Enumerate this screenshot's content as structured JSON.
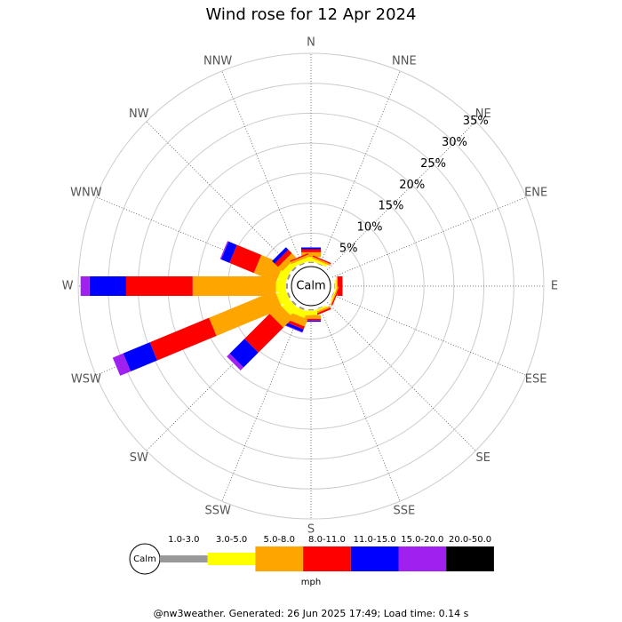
{
  "chart_data": {
    "type": "windrose",
    "title": "Wind rose for 12 Apr 2024",
    "categories": [
      "N",
      "NNE",
      "NE",
      "ENE",
      "E",
      "ESE",
      "SE",
      "SSE",
      "S",
      "SSW",
      "SW",
      "WSW",
      "W",
      "WNW",
      "NW",
      "NNW"
    ],
    "series": [
      {
        "name": "1.0-3.0",
        "color": "#999999",
        "values": [
          0.2,
          0.1,
          0,
          0,
          0.1,
          0.1,
          0,
          0.1,
          0.2,
          0.3,
          0.3,
          0.3,
          0.3,
          0.3,
          0.3,
          0.2
        ]
      },
      {
        "name": "3.0-5.0",
        "color": "#ffff00",
        "values": [
          0.8,
          0.4,
          0,
          0,
          0.3,
          0.2,
          0,
          0.3,
          0.8,
          1.2,
          1.7,
          1.7,
          1.7,
          1.5,
          1.0,
          0.6
        ]
      },
      {
        "name": "5.0-8.0",
        "color": "#ffa500",
        "values": [
          0.8,
          0.3,
          0,
          0,
          0.2,
          0.2,
          0,
          0.3,
          0.6,
          1.3,
          2.3,
          11.9,
          13.9,
          4.0,
          1.0,
          0.4
        ]
      },
      {
        "name": "8.0-11.0",
        "color": "#ff0000",
        "values": [
          0.5,
          0.2,
          0,
          0,
          0.8,
          0.2,
          0,
          0.3,
          0.3,
          0.5,
          5.9,
          10.7,
          11.1,
          4.4,
          0.8,
          0.2
        ]
      },
      {
        "name": "11.0-15.0",
        "color": "#0000ff",
        "values": [
          0.3,
          0,
          0,
          0,
          0,
          0,
          0,
          0,
          0.2,
          0.5,
          3.5,
          4.8,
          6.1,
          1.5,
          0.6,
          0
        ]
      },
      {
        "name": "15.0-20.0",
        "color": "#a020f0",
        "values": [
          0,
          0,
          0,
          0,
          0,
          0,
          0,
          0,
          0,
          0.1,
          0.7,
          1.9,
          1.5,
          0.2,
          0,
          0
        ]
      },
      {
        "name": "20.0-50.0",
        "color": "#000000",
        "values": [
          0,
          0,
          0,
          0,
          0,
          0,
          0,
          0,
          0,
          0,
          0,
          0,
          0,
          0,
          0,
          0
        ]
      }
    ],
    "ylim": [
      0,
      35
    ],
    "yticks": [
      {
        "value": 5,
        "label": "5%"
      },
      {
        "value": 10,
        "label": "10%"
      },
      {
        "value": 15,
        "label": "15%"
      },
      {
        "value": 20,
        "label": "20%"
      },
      {
        "value": 25,
        "label": "25%"
      },
      {
        "value": 30,
        "label": "30%"
      },
      {
        "value": 35,
        "label": "35%"
      }
    ],
    "calm_label": "Calm",
    "legend_title": "mph"
  },
  "footer": "@nw3weather. Generated: 26 Jun 2025 17:49; Load time: 0.14 s"
}
